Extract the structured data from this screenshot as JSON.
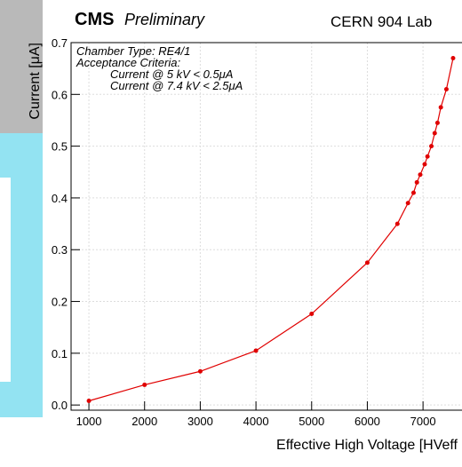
{
  "chart_data": {
    "type": "line",
    "cms_label": "CMS",
    "preliminary": "Preliminary",
    "lab": "CERN 904 Lab",
    "annotations": [
      "Chamber Type: RE4/1",
      "Acceptance Criteria:",
      "Current @ 5 kV < 0.5μA",
      "Current @ 7.4 kV < 2.5μA"
    ],
    "xlabel": "Effective High Voltage [HVeff",
    "ylabel": "Current [μA]",
    "xlim": [
      680,
      7700
    ],
    "ylim": [
      -0.01,
      0.7
    ],
    "xticks": [
      1000,
      2000,
      3000,
      4000,
      5000,
      6000,
      7000
    ],
    "yticks": [
      {
        "value": 0,
        "label": "0.0"
      },
      0.1,
      0.2,
      0.3,
      0.4,
      0.5,
      0.6,
      0.7
    ],
    "grid": true,
    "series": [
      {
        "color": "#e00000",
        "x": [
          1000,
          2000,
          3000,
          4000,
          5000,
          6000,
          6540,
          6730,
          6830,
          6890,
          6950,
          7030,
          7080,
          7150,
          7210,
          7260,
          7320,
          7420,
          7540
        ],
        "values": [
          0.008,
          0.039,
          0.065,
          0.105,
          0.176,
          0.275,
          0.35,
          0.39,
          0.41,
          0.43,
          0.445,
          0.465,
          0.48,
          0.5,
          0.525,
          0.545,
          0.575,
          0.61,
          0.67
        ]
      }
    ]
  }
}
